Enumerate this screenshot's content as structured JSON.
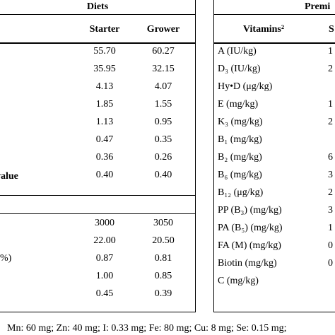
{
  "left_table": {
    "header": "Diets",
    "columns": [
      "Starter",
      "Grower"
    ],
    "rows": [
      [
        "55.70",
        "60.27"
      ],
      [
        "35.95",
        "32.15"
      ],
      [
        "4.13",
        "4.07"
      ],
      [
        "1.85",
        "1.55"
      ],
      [
        "1.13",
        "0.95"
      ],
      [
        "0.47",
        "0.35"
      ],
      [
        "0.36",
        "0.26"
      ],
      [
        "0.40",
        "0.40"
      ]
    ],
    "section": "value",
    "section_rows": [
      {
        "values": [
          "3000",
          "3050"
        ]
      },
      {
        "values": [
          "22.00",
          "20.50"
        ]
      },
      {
        "label": "%)",
        "values": [
          "0.87",
          "0.81"
        ]
      },
      {
        "values": [
          "1.00",
          "0.85"
        ]
      },
      {
        "values": [
          "0.45",
          "0.39"
        ]
      }
    ]
  },
  "right_table": {
    "header": "Premi",
    "columns": [
      "Vitamins²",
      "S"
    ],
    "rows": [
      {
        "label": "A (IU/kg)",
        "value": "1"
      },
      {
        "label": "D₃ (IU/kg)",
        "value": "2"
      },
      {
        "label": "Hy•D (μg/kg)"
      },
      {
        "label": "E (mg/kg)",
        "value": "1"
      },
      {
        "label": "K₃ (mg/kg)",
        "value": "2"
      },
      {
        "label": "B₁ (mg/kg)"
      },
      {
        "label": "B₂ (mg/kg)",
        "value": "6"
      },
      {
        "label": "B₆ (mg/kg)",
        "value": "3"
      },
      {
        "label": "B₁₂ (μg/kg)",
        "value": "2"
      },
      {
        "label": "PP (B₃) (mg/kg)",
        "value": "3"
      },
      {
        "label": "PA (B₅) (mg/kg)",
        "value": "1"
      },
      {
        "label": "FA (M) (mg/kg)",
        "value": "0"
      },
      {
        "label": "Biotin (mg/kg)",
        "value": "0"
      },
      {
        "label": "C (mg/kg)"
      }
    ]
  },
  "footnote": "Mn: 60 mg; Zn: 40 mg; I: 0.33 mg; Fe: 80 mg; Cu: 8 mg; Se: 0.15 mg;"
}
